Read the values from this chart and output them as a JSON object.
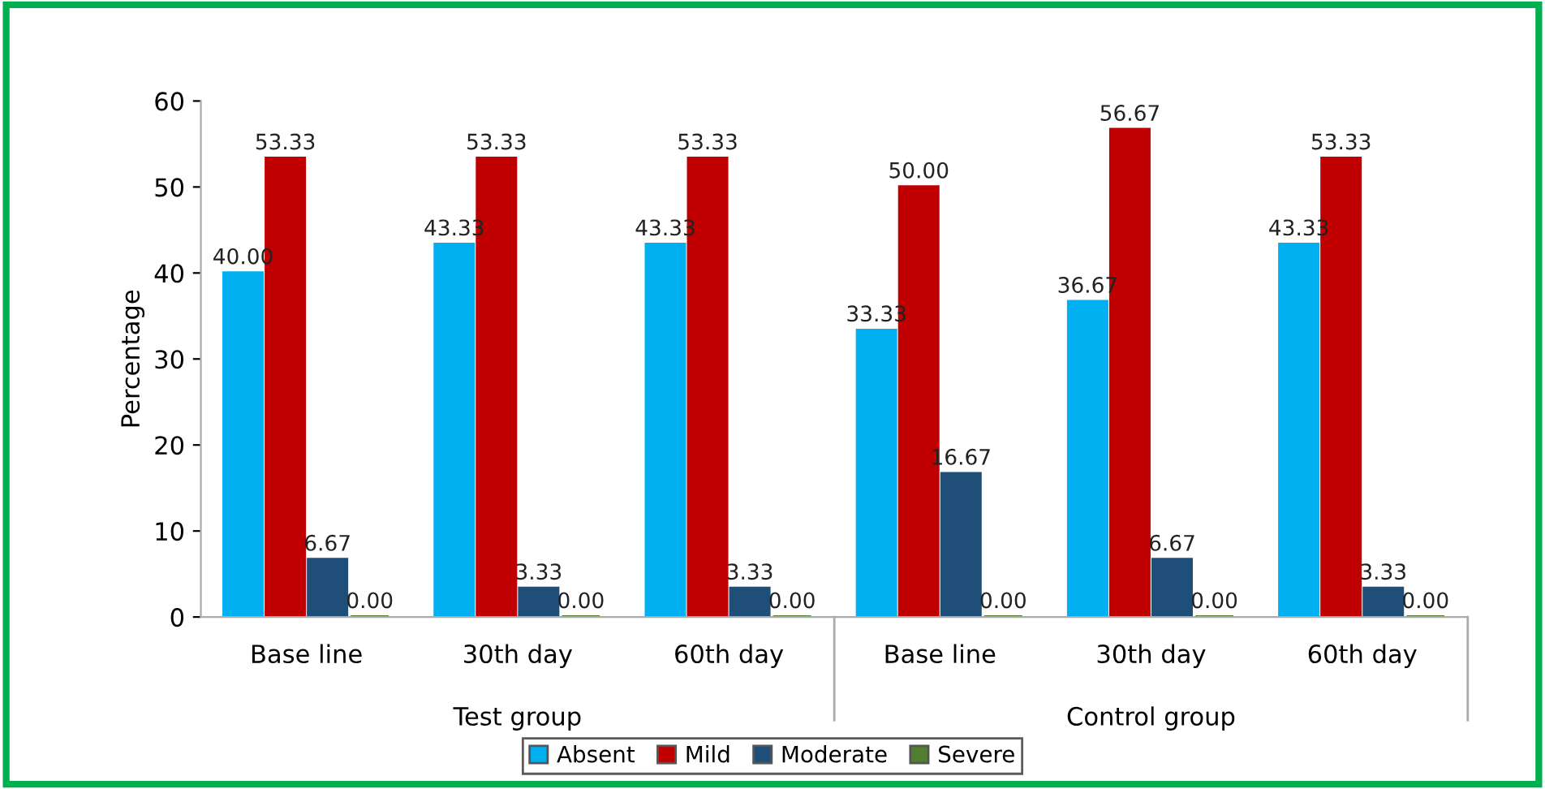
{
  "chart_data": {
    "type": "bar",
    "ylabel": "Percentage",
    "categories": [
      "Base line",
      "30th day",
      "60th day",
      "Base line",
      "30th day",
      "60th day"
    ],
    "series": [
      {
        "name": "Absent",
        "color": "#00b0f0",
        "values": [
          40.0,
          43.33,
          43.33,
          33.33,
          36.67,
          43.33
        ],
        "value_labels": [
          "40.00",
          "43.33",
          "43.33",
          "33.33",
          "36.67",
          "43.33"
        ]
      },
      {
        "name": "Mild",
        "color": "#c00000",
        "values": [
          53.33,
          53.33,
          53.33,
          50.0,
          56.67,
          53.33
        ],
        "value_labels": [
          "53.33",
          "53.33",
          "53.33",
          "50.00",
          "56.67",
          "53.33"
        ]
      },
      {
        "name": "Moderate",
        "color": "#1f4e79",
        "values": [
          6.67,
          3.33,
          3.33,
          16.67,
          6.67,
          3.33
        ],
        "value_labels": [
          "6.67",
          "3.33",
          "3.33",
          "16.67",
          "6.67",
          "3.33"
        ]
      },
      {
        "name": "Severe",
        "color": "#4f7f2f",
        "values": [
          0.0,
          0.0,
          0.0,
          0.0,
          0.0,
          0.0
        ],
        "value_labels": [
          "0.00",
          "0.00",
          "0.00",
          "0.00",
          "0.00",
          "0.00"
        ]
      }
    ],
    "annotations": [
      "Test group",
      "Control group"
    ],
    "ylim": [
      0,
      60
    ],
    "yticks": [
      0,
      10,
      20,
      30,
      40,
      50,
      60
    ],
    "grid": false,
    "legend": "bottom"
  }
}
